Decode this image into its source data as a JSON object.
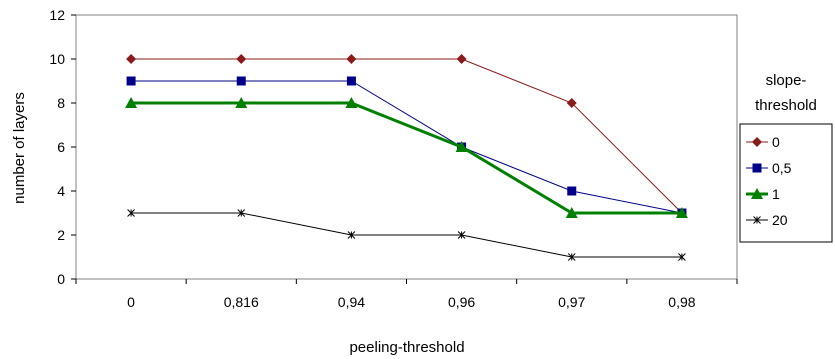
{
  "chart_data": {
    "type": "line",
    "xlabel": "peeling-threshold",
    "ylabel": "number of layers",
    "categories": [
      "0",
      "0,816",
      "0,94",
      "0,96",
      "0,97",
      "0,98"
    ],
    "ylim": [
      0,
      12
    ],
    "yticks": [
      0,
      2,
      4,
      6,
      8,
      10,
      12
    ],
    "grid": false,
    "legend": {
      "title": "slope-threshold",
      "title_lines": [
        "slope-",
        "threshold"
      ],
      "placement": "right"
    },
    "series": [
      {
        "name": "0",
        "values": [
          10,
          10,
          10,
          10,
          8,
          3
        ],
        "color": "#8b1a1a",
        "marker": "diamond"
      },
      {
        "name": "0,5",
        "values": [
          9,
          9,
          9,
          6,
          4,
          3
        ],
        "color": "#00008b",
        "marker": "square"
      },
      {
        "name": "1",
        "values": [
          8,
          8,
          8,
          6,
          3,
          3
        ],
        "color": "#008000",
        "marker": "triangle"
      },
      {
        "name": "20",
        "values": [
          3,
          3,
          2,
          2,
          1,
          1
        ],
        "color": "#000000",
        "marker": "star"
      }
    ]
  }
}
